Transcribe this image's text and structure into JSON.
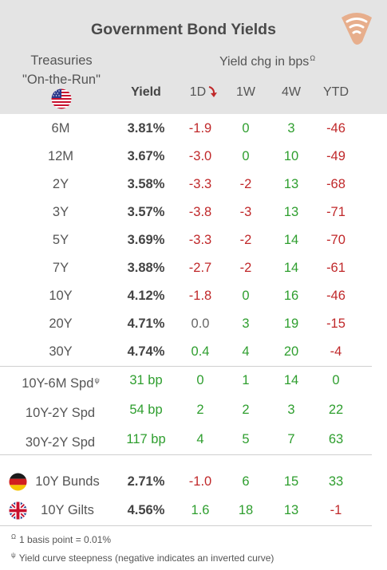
{
  "title": "Government Bond Yields",
  "treasuries": {
    "line1": "Treasuries",
    "line2": "\"On-the-Run\""
  },
  "yield_chg_title": "Yield chg in bps",
  "yield_chg_sup": "Ω",
  "columns": {
    "yield": "Yield",
    "d1": "1D",
    "w1": "1W",
    "w4": "4W",
    "ytd": "YTD"
  },
  "colors": {
    "header_bg": "#e4e4e4",
    "positive": "#2e9e2e",
    "negative": "#c0282a",
    "logo": "#e8a57c",
    "arrow": "#c0282a"
  },
  "treasury_rows": [
    {
      "label": "6M",
      "yield": "3.81%",
      "d1": "-1.9",
      "w1": "0",
      "w4": "3",
      "ytd": "-46"
    },
    {
      "label": "12M",
      "yield": "3.67%",
      "d1": "-3.0",
      "w1": "0",
      "w4": "10",
      "ytd": "-49"
    },
    {
      "label": "2Y",
      "yield": "3.58%",
      "d1": "-3.3",
      "w1": "-2",
      "w4": "13",
      "ytd": "-68"
    },
    {
      "label": "3Y",
      "yield": "3.57%",
      "d1": "-3.8",
      "w1": "-3",
      "w4": "13",
      "ytd": "-71"
    },
    {
      "label": "5Y",
      "yield": "3.69%",
      "d1": "-3.3",
      "w1": "-2",
      "w4": "14",
      "ytd": "-70"
    },
    {
      "label": "7Y",
      "yield": "3.88%",
      "d1": "-2.7",
      "w1": "-2",
      "w4": "14",
      "ytd": "-61"
    },
    {
      "label": "10Y",
      "yield": "4.12%",
      "d1": "-1.8",
      "w1": "0",
      "w4": "16",
      "ytd": "-46"
    },
    {
      "label": "20Y",
      "yield": "4.71%",
      "d1": "0.0",
      "w1": "3",
      "w4": "19",
      "ytd": "-15"
    },
    {
      "label": "30Y",
      "yield": "4.74%",
      "d1": "0.4",
      "w1": "4",
      "w4": "20",
      "ytd": "-4"
    }
  ],
  "spread_rows": [
    {
      "label": "10Y-6M Spd",
      "label_sup": "ψ",
      "yield": "31 bp",
      "d1": "0",
      "w1": "1",
      "w4": "14",
      "ytd": "0"
    },
    {
      "label": "10Y-2Y Spd",
      "label_sup": "",
      "yield": "54 bp",
      "d1": "2",
      "w1": "2",
      "w4": "3",
      "ytd": "22"
    },
    {
      "label": "30Y-2Y Spd",
      "label_sup": "",
      "yield": "117 bp",
      "d1": "4",
      "w1": "5",
      "w4": "7",
      "ytd": "63"
    }
  ],
  "intl_rows": [
    {
      "label": "10Y Bunds",
      "flag": "germany-flag-icon",
      "yield": "2.71%",
      "d1": "-1.0",
      "w1": "6",
      "w4": "15",
      "ytd": "33"
    },
    {
      "label": "10Y Gilts",
      "flag": "uk-flag-icon",
      "yield": "4.56%",
      "d1": "1.6",
      "w1": "18",
      "w4": "13",
      "ytd": "-1"
    }
  ],
  "footnotes": [
    {
      "sup": "Ω",
      "text": "1 basis point = 0.01%"
    },
    {
      "sup": "ψ",
      "text": "Yield curve steepness (negative indicates an inverted curve)"
    }
  ]
}
